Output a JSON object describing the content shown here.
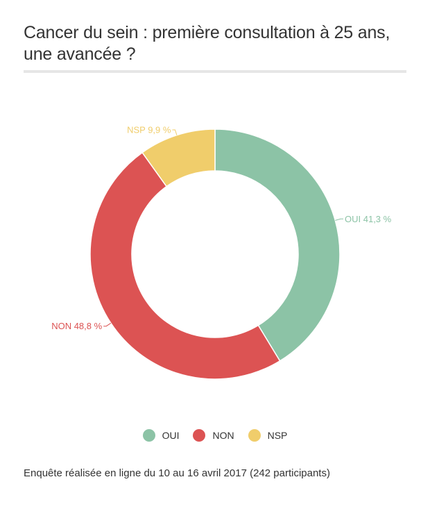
{
  "title": "Cancer du sein : première consultation à 25 ans, une avancée ?",
  "footnote": "Enquête réalisée en ligne du 10 au 16 avril 2017 (242 participants)",
  "chart_data": {
    "type": "pie",
    "donut": true,
    "categories": [
      "OUI",
      "NON",
      "NSP"
    ],
    "values": [
      41.3,
      48.8,
      9.9
    ],
    "colors": [
      "#8cc3a6",
      "#dc5353",
      "#f0cd6b"
    ],
    "slice_labels": [
      "OUI 41,3 %",
      "NON 48,8 %",
      "NSP 9,9 %"
    ],
    "legend": {
      "position": "bottom",
      "entries": [
        "OUI",
        "NON",
        "NSP"
      ]
    }
  }
}
